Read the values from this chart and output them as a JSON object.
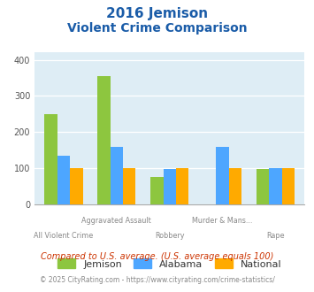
{
  "title_line1": "2016 Jemison",
  "title_line2": "Violent Crime Comparison",
  "categories": [
    "All Violent Crime",
    "Aggravated Assault",
    "Robbery",
    "Murder & Mans...",
    "Rape"
  ],
  "top_labels": [
    "",
    "Aggravated Assault",
    "",
    "Murder & Mans...",
    ""
  ],
  "bottom_labels": [
    "All Violent Crime",
    "",
    "Robbery",
    "",
    "Rape"
  ],
  "jemison": [
    250,
    355,
    75,
    0,
    97
  ],
  "alabama": [
    135,
    158,
    97,
    158,
    100
  ],
  "national": [
    100,
    100,
    100,
    100,
    100
  ],
  "colors": {
    "jemison": "#8dc63f",
    "alabama": "#4da6ff",
    "national": "#ffaa00"
  },
  "ylim": [
    0,
    420
  ],
  "yticks": [
    0,
    100,
    200,
    300,
    400
  ],
  "background_plot": "#deedf5",
  "background_fig": "#ffffff",
  "title_color": "#1a5ca8",
  "footnote1": "Compared to U.S. average. (U.S. average equals 100)",
  "footnote2": "© 2025 CityRating.com - https://www.cityrating.com/crime-statistics/",
  "footnote1_color": "#cc3300",
  "footnote2_color": "#888888",
  "legend_labels": [
    "Jemison",
    "Alabama",
    "National"
  ]
}
